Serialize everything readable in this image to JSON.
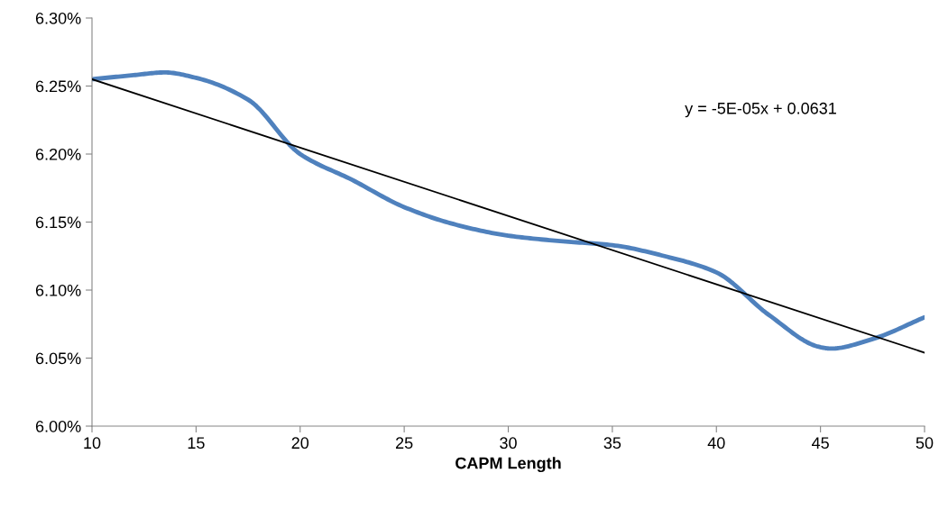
{
  "chart_data": {
    "type": "line",
    "xlabel": "CAPM Length",
    "series": [
      {
        "color": "#4f81bd",
        "x": [
          10,
          12,
          13.5,
          15,
          17.5,
          20,
          22.5,
          25,
          27.5,
          30,
          32.5,
          35,
          37.5,
          40,
          42.5,
          45,
          45.5,
          47.5,
          50
        ],
        "values": [
          6.255,
          6.258,
          6.26,
          6.256,
          6.24,
          6.2,
          6.181,
          6.161,
          6.148,
          6.14,
          6.136,
          6.133,
          6.125,
          6.113,
          6.082,
          6.058,
          6.057,
          6.064,
          6.08
        ]
      },
      {
        "type": "line",
        "color": "#000000",
        "x": [
          10,
          50
        ],
        "values": [
          6.255,
          6.054
        ]
      }
    ],
    "xlim": [
      10,
      50
    ],
    "xticks": [
      10,
      15,
      20,
      25,
      30,
      35,
      40,
      45,
      50
    ],
    "ylim": [
      6.0,
      6.3
    ],
    "yticks": [
      {
        "value": 6.0,
        "label": "6.00%"
      },
      {
        "value": 6.05,
        "label": "6.05%"
      },
      {
        "value": 6.1,
        "label": "6.10%"
      },
      {
        "value": 6.15,
        "label": "6.15%"
      },
      {
        "value": 6.2,
        "label": "6.20%"
      },
      {
        "value": 6.25,
        "label": "6.25%"
      },
      {
        "value": 6.3,
        "label": "6.30%"
      }
    ],
    "annotations": [
      "y = -5E-05x + 0.0631"
    ],
    "grid": false,
    "marker": "none",
    "line_style": "solid"
  }
}
